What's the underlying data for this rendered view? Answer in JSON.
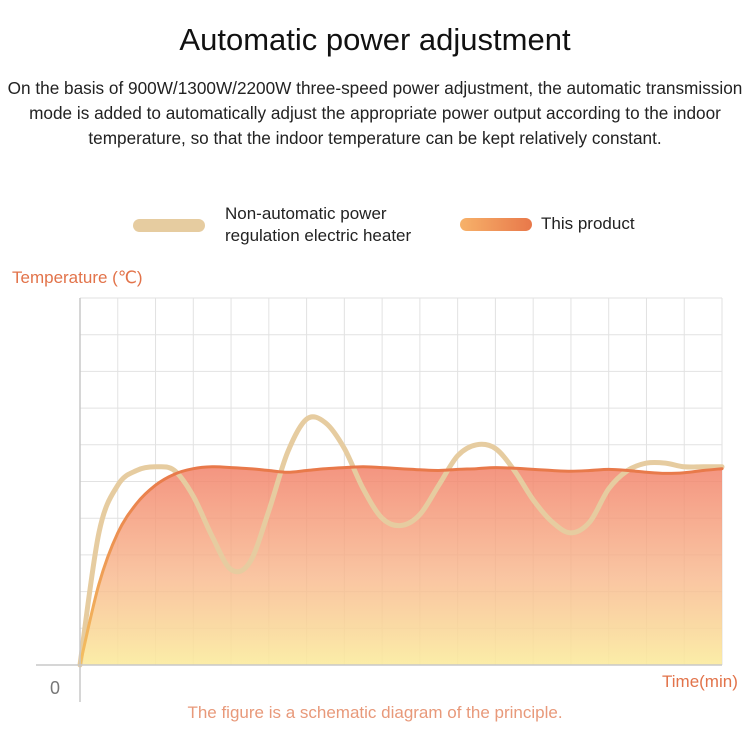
{
  "page": {
    "title": "Automatic power adjustment",
    "description": "On the basis of 900W/1300W/2200W three-speed power adjustment, the automatic transmission mode is added to automatically adjust the appropriate power output according to the indoor temperature, so that the indoor temperature can be kept relatively constant.",
    "caption": "The figure is a schematic diagram of the principle."
  },
  "legend": {
    "non_auto_label": "Non-automatic power regulation electric heater",
    "product_label": "This product"
  },
  "colors": {
    "non_auto_line": "#e6cca0",
    "product_line": "#e8784a",
    "product_fill_top": "#f2826a",
    "product_fill_bottom": "#fbeb9e",
    "axis_label": "#e2734a",
    "grid": "#e2e2e2"
  },
  "chart_data": {
    "type": "line",
    "title": "",
    "xlabel": "Time(min)",
    "ylabel": "Temperature (℃)",
    "origin_label": "0",
    "xlim": [
      0,
      17
    ],
    "ylim": [
      0,
      10
    ],
    "grid": true,
    "legend_position": "top",
    "series": [
      {
        "name": "Non-automatic power regulation electric heater",
        "style": "line",
        "x": [
          0,
          0.5,
          1,
          1.5,
          2,
          2.5,
          3,
          3.5,
          4,
          4.5,
          5,
          5.5,
          6,
          6.5,
          7,
          7.5,
          8,
          8.5,
          9,
          9.5,
          10,
          10.5,
          11,
          11.5,
          12,
          12.5,
          13,
          13.5,
          14,
          14.5,
          15,
          15.5,
          16,
          16.5,
          17
        ],
        "values": [
          0,
          3.6,
          4.9,
          5.3,
          5.4,
          5.3,
          4.6,
          3.5,
          2.6,
          2.8,
          4.2,
          5.8,
          6.7,
          6.6,
          5.9,
          4.8,
          4.0,
          3.8,
          4.1,
          4.9,
          5.7,
          6.0,
          5.9,
          5.3,
          4.5,
          3.9,
          3.6,
          3.9,
          4.8,
          5.3,
          5.5,
          5.5,
          5.4,
          5.4,
          5.4
        ]
      },
      {
        "name": "This product",
        "style": "filled-area",
        "x": [
          0,
          0.5,
          1,
          1.5,
          2,
          2.5,
          3,
          3.5,
          4,
          4.5,
          5,
          5.5,
          6,
          6.5,
          7,
          7.5,
          8,
          8.5,
          9,
          9.5,
          10,
          10.5,
          11,
          11.5,
          12,
          12.5,
          13,
          13.5,
          14,
          14.5,
          15,
          15.5,
          16,
          16.5,
          17
        ],
        "values": [
          0,
          2.2,
          3.6,
          4.4,
          4.9,
          5.2,
          5.35,
          5.4,
          5.38,
          5.35,
          5.3,
          5.25,
          5.3,
          5.35,
          5.38,
          5.4,
          5.38,
          5.35,
          5.32,
          5.3,
          5.33,
          5.35,
          5.38,
          5.36,
          5.33,
          5.3,
          5.28,
          5.3,
          5.33,
          5.3,
          5.25,
          5.22,
          5.24,
          5.3,
          5.35
        ]
      }
    ]
  }
}
